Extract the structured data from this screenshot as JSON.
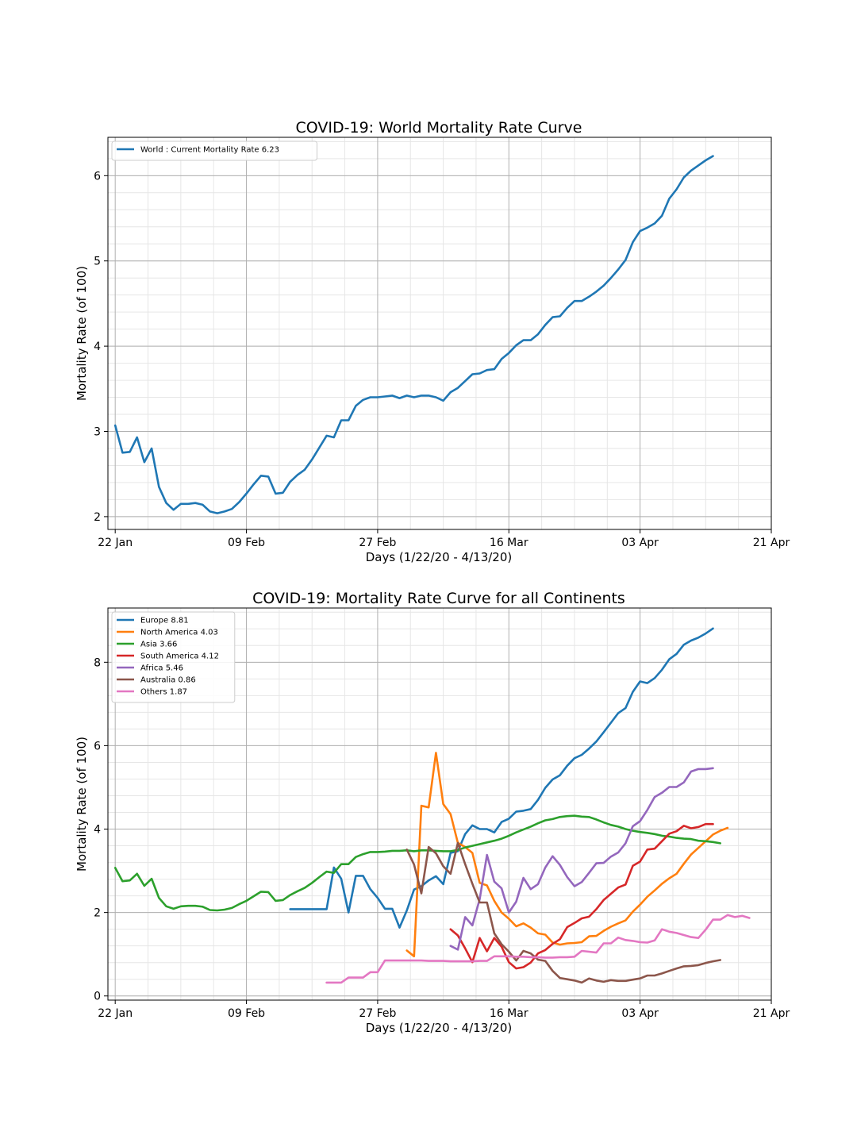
{
  "chart_data": [
    {
      "type": "line",
      "title": "COVID-19: World Mortality Rate Curve",
      "xlabel": "Days (1/22/20 - 4/13/20)",
      "ylabel": "Mortality Rate (of 100)",
      "x_start_date": "2020-01-22",
      "xlim": [
        "2020-01-21",
        "2020-04-21"
      ],
      "ylim": [
        1.85,
        6.45
      ],
      "xticks": [
        "22 Jan",
        "09 Feb",
        "27 Feb",
        "16 Mar",
        "03 Apr",
        "21 Apr"
      ],
      "yticks": [
        2,
        3,
        4,
        5,
        6
      ],
      "grid": true,
      "legend_position": "top-left",
      "series": [
        {
          "name": "World : Current Mortality Rate 6.23",
          "color": "#1f77b4",
          "start_date": "2020-01-22",
          "values": [
            3.07,
            2.75,
            2.76,
            2.93,
            2.64,
            2.8,
            2.35,
            2.16,
            2.08,
            2.15,
            2.15,
            2.16,
            2.14,
            2.06,
            2.04,
            2.06,
            2.09,
            2.17,
            2.27,
            2.38,
            2.48,
            2.47,
            2.27,
            2.28,
            2.41,
            2.49,
            2.55,
            2.67,
            2.81,
            2.95,
            2.93,
            3.13,
            3.13,
            3.3,
            3.37,
            3.4,
            3.4,
            3.41,
            3.42,
            3.39,
            3.42,
            3.4,
            3.42,
            3.42,
            3.4,
            3.36,
            3.46,
            3.51,
            3.59,
            3.67,
            3.68,
            3.72,
            3.73,
            3.85,
            3.92,
            4.01,
            4.07,
            4.07,
            4.14,
            4.25,
            4.34,
            4.35,
            4.45,
            4.53,
            4.53,
            4.58,
            4.64,
            4.71,
            4.8,
            4.9,
            5.01,
            5.22,
            5.35,
            5.39,
            5.44,
            5.53,
            5.73,
            5.84,
            5.98,
            6.06,
            6.12,
            6.18,
            6.23
          ]
        }
      ]
    },
    {
      "type": "line",
      "title": "COVID-19: Mortality Rate Curve for all Continents",
      "xlabel": "Days (1/22/20 - 4/13/20)",
      "ylabel": "Mortality Rate (of 100)",
      "x_start_date": "2020-01-22",
      "xlim": [
        "2020-01-21",
        "2020-04-21"
      ],
      "ylim": [
        -0.1,
        9.3
      ],
      "xticks": [
        "22 Jan",
        "09 Feb",
        "27 Feb",
        "16 Mar",
        "03 Apr",
        "21 Apr"
      ],
      "yticks": [
        0,
        2,
        4,
        6,
        8
      ],
      "grid": true,
      "legend_position": "top-left",
      "series": [
        {
          "name": "Europe 8.81",
          "color": "#1f77b4",
          "start_date": "2020-02-15",
          "values": [
            2.08,
            2.08,
            2.08,
            2.08,
            2.08,
            2.08,
            3.08,
            2.81,
            2.0,
            2.88,
            2.88,
            2.56,
            2.35,
            2.09,
            2.09,
            1.64,
            2.05,
            2.55,
            2.63,
            2.77,
            2.87,
            2.68,
            3.43,
            3.47,
            3.88,
            4.09,
            4.0,
            4.0,
            3.92,
            4.17,
            4.25,
            4.42,
            4.44,
            4.48,
            4.7,
            4.99,
            5.19,
            5.29,
            5.52,
            5.7,
            5.78,
            5.93,
            6.1,
            6.32,
            6.55,
            6.78,
            6.9,
            7.29,
            7.54,
            7.5,
            7.62,
            7.82,
            8.07,
            8.2,
            8.42,
            8.52,
            8.59,
            8.69,
            8.81
          ]
        },
        {
          "name": "North America 4.03",
          "color": "#ff7f0e",
          "start_date": "2020-03-02",
          "values": [
            1.09,
            0.95,
            4.56,
            4.52,
            5.83,
            4.6,
            4.36,
            3.67,
            3.57,
            3.43,
            2.71,
            2.65,
            2.28,
            2.0,
            1.85,
            1.67,
            1.74,
            1.64,
            1.5,
            1.47,
            1.28,
            1.23,
            1.26,
            1.27,
            1.29,
            1.43,
            1.44,
            1.56,
            1.66,
            1.74,
            1.81,
            2.02,
            2.19,
            2.38,
            2.53,
            2.69,
            2.82,
            2.93,
            3.17,
            3.39,
            3.55,
            3.71,
            3.87,
            3.96,
            4.03
          ]
        },
        {
          "name": "Asia 3.66",
          "color": "#2ca02c",
          "start_date": "2020-01-22",
          "values": [
            3.07,
            2.75,
            2.77,
            2.93,
            2.64,
            2.81,
            2.35,
            2.15,
            2.09,
            2.15,
            2.16,
            2.16,
            2.14,
            2.06,
            2.05,
            2.07,
            2.11,
            2.2,
            2.28,
            2.39,
            2.5,
            2.49,
            2.28,
            2.3,
            2.42,
            2.51,
            2.59,
            2.71,
            2.85,
            2.98,
            2.95,
            3.16,
            3.16,
            3.33,
            3.4,
            3.45,
            3.45,
            3.46,
            3.48,
            3.48,
            3.49,
            3.47,
            3.49,
            3.49,
            3.48,
            3.47,
            3.47,
            3.5,
            3.56,
            3.6,
            3.64,
            3.68,
            3.72,
            3.77,
            3.84,
            3.92,
            3.99,
            4.06,
            4.14,
            4.21,
            4.24,
            4.29,
            4.31,
            4.32,
            4.3,
            4.29,
            4.23,
            4.16,
            4.1,
            4.06,
            4.0,
            3.96,
            3.93,
            3.91,
            3.88,
            3.84,
            3.82,
            3.79,
            3.77,
            3.76,
            3.72,
            3.71,
            3.69,
            3.66
          ]
        },
        {
          "name": "South America 4.12",
          "color": "#d62728",
          "start_date": "2020-03-08",
          "values": [
            1.6,
            1.45,
            1.14,
            0.81,
            1.39,
            1.07,
            1.39,
            1.18,
            0.81,
            0.66,
            0.69,
            0.8,
            1.02,
            1.1,
            1.25,
            1.36,
            1.65,
            1.75,
            1.86,
            1.9,
            2.08,
            2.3,
            2.45,
            2.6,
            2.67,
            3.12,
            3.22,
            3.51,
            3.53,
            3.71,
            3.89,
            3.95,
            4.08,
            4.02,
            4.05,
            4.12,
            4.12
          ]
        },
        {
          "name": "Africa 5.46",
          "color": "#9467bd",
          "start_date": "2020-03-08",
          "values": [
            1.2,
            1.11,
            1.89,
            1.69,
            2.32,
            3.38,
            2.74,
            2.58,
            2.0,
            2.26,
            2.83,
            2.56,
            2.68,
            3.08,
            3.35,
            3.14,
            2.85,
            2.63,
            2.73,
            2.95,
            3.18,
            3.19,
            3.34,
            3.44,
            3.66,
            4.07,
            4.19,
            4.46,
            4.77,
            4.87,
            5.01,
            5.01,
            5.12,
            5.38,
            5.44,
            5.44,
            5.46
          ]
        },
        {
          "name": "Australia 0.86",
          "color": "#8c564b",
          "start_date": "2020-03-02",
          "values": [
            3.51,
            3.15,
            2.46,
            3.57,
            3.42,
            3.11,
            2.93,
            3.67,
            3.16,
            2.69,
            2.24,
            2.24,
            1.5,
            1.24,
            1.06,
            0.85,
            1.08,
            1.02,
            0.87,
            0.84,
            0.6,
            0.43,
            0.4,
            0.37,
            0.32,
            0.42,
            0.37,
            0.34,
            0.38,
            0.36,
            0.36,
            0.39,
            0.42,
            0.49,
            0.49,
            0.54,
            0.6,
            0.66,
            0.71,
            0.72,
            0.74,
            0.79,
            0.83,
            0.86
          ]
        },
        {
          "name": "Others 1.87",
          "color": "#e377c2",
          "start_date": "2020-02-20",
          "values": [
            0.32,
            0.32,
            0.32,
            0.44,
            0.44,
            0.44,
            0.57,
            0.57,
            0.85,
            0.85,
            0.85,
            0.85,
            0.85,
            0.85,
            0.84,
            0.84,
            0.84,
            0.83,
            0.83,
            0.83,
            0.83,
            0.84,
            0.84,
            0.95,
            0.95,
            0.95,
            0.94,
            0.94,
            0.93,
            0.93,
            0.92,
            0.92,
            0.93,
            0.93,
            0.94,
            1.08,
            1.06,
            1.04,
            1.26,
            1.26,
            1.4,
            1.34,
            1.32,
            1.29,
            1.28,
            1.33,
            1.6,
            1.54,
            1.51,
            1.46,
            1.41,
            1.39,
            1.59,
            1.83,
            1.83,
            1.94,
            1.89,
            1.92,
            1.87
          ]
        }
      ]
    }
  ]
}
